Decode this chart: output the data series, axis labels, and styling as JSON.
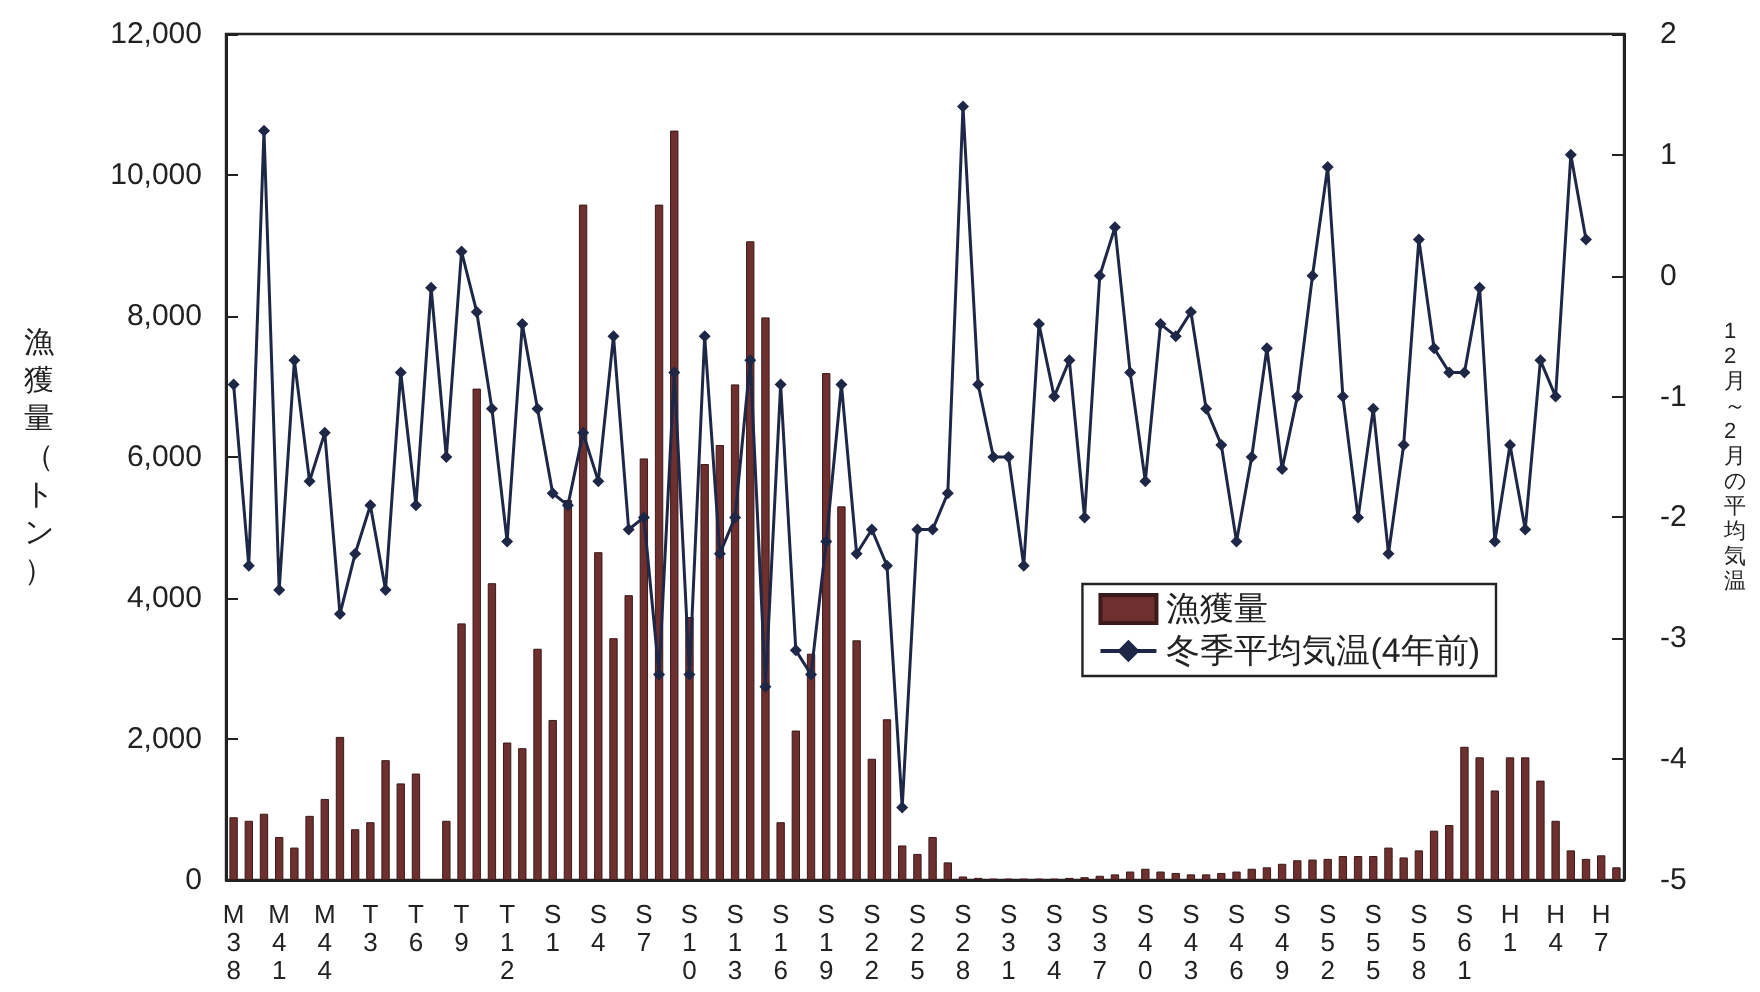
{
  "chart_data": {
    "type": "bar",
    "categories": [
      "M38",
      null,
      null,
      "M41",
      null,
      null,
      "M44",
      null,
      null,
      "T3",
      null,
      null,
      "T6",
      null,
      null,
      "T9",
      null,
      null,
      "T12",
      null,
      null,
      "S1",
      null,
      null,
      "S4",
      null,
      null,
      "S7",
      null,
      null,
      "S10",
      null,
      null,
      "S13",
      null,
      null,
      "S16",
      null,
      null,
      "S19",
      null,
      null,
      "S22",
      null,
      null,
      "S25",
      null,
      null,
      "S28",
      null,
      null,
      "S31",
      null,
      null,
      "S34",
      null,
      null,
      "S37",
      null,
      null,
      "S40",
      null,
      null,
      "S43",
      null,
      null,
      "S46",
      null,
      null,
      "S49",
      null,
      null,
      "S52",
      null,
      null,
      "S55",
      null,
      null,
      "S58",
      null,
      null,
      "S61",
      null,
      null,
      "H1",
      null,
      null,
      "H4",
      null,
      null,
      "H7",
      null
    ],
    "series": [
      {
        "name": "漁獲量",
        "color": "#6e2f2f",
        "values": [
          890,
          840,
          940,
          610,
          460,
          910,
          1150,
          2030,
          720,
          820,
          1700,
          1370,
          1510,
          null,
          840,
          3640,
          6970,
          4210,
          1950,
          1870,
          3280,
          2270,
          5390,
          9580,
          4650,
          3430,
          4040,
          5980,
          9580,
          10630,
          3730,
          5900,
          6170,
          7030,
          9060,
          7980,
          820,
          2120,
          3210,
          7190,
          5300,
          3400,
          1720,
          2280,
          490,
          370,
          610,
          250,
          50,
          30,
          20,
          20,
          20,
          20,
          20,
          30,
          40,
          60,
          80,
          120,
          160,
          120,
          100,
          80,
          80,
          100,
          120,
          160,
          180,
          230,
          280,
          290,
          300,
          340,
          340,
          340,
          460,
          320,
          420,
          700,
          780,
          1890,
          1740,
          1270,
          1740,
          1740,
          1410,
          840,
          420,
          300,
          350,
          180
        ]
      },
      {
        "name": "冬季平均気温(4年前)",
        "type": "line",
        "axis": "y2",
        "color": "#1f2747",
        "marker": "diamond",
        "values": [
          -0.9,
          -2.4,
          1.2,
          -2.6,
          -0.7,
          -1.7,
          -1.3,
          -2.8,
          -2.3,
          -1.9,
          -2.6,
          -0.8,
          -1.9,
          -0.1,
          -1.5,
          0.2,
          -0.3,
          -1.1,
          -2.2,
          -0.4,
          -1.1,
          -1.8,
          -1.9,
          -1.3,
          -1.7,
          -0.5,
          -2.1,
          -2.0,
          -3.3,
          -0.8,
          -3.3,
          -0.5,
          -2.3,
          -2.0,
          -0.7,
          -3.4,
          -0.9,
          -3.1,
          -3.3,
          -2.2,
          -0.9,
          -2.3,
          -2.1,
          -2.4,
          -4.4,
          -2.1,
          -2.1,
          -1.8,
          1.4,
          -0.9,
          -1.5,
          -1.5,
          -2.4,
          -0.4,
          -1.0,
          -0.7,
          -2.0,
          0.0,
          0.4,
          -0.8,
          -1.7,
          -0.4,
          -0.5,
          -0.3,
          -1.1,
          -1.4,
          -2.2,
          -1.5,
          -0.6,
          -1.6,
          -1.0,
          0.0,
          0.9,
          -1.0,
          -2.0,
          -1.1,
          -2.3,
          -1.4,
          0.3,
          -0.6,
          -0.8,
          -0.8,
          -0.1,
          -2.2,
          -1.4,
          -2.1,
          -0.7,
          -1.0,
          1.0,
          0.3,
          null,
          null
        ]
      }
    ],
    "ylabel": "漁獲量（トン）",
    "y2label": "12月～2月の平均気温",
    "ylim": [
      0,
      12000
    ],
    "yticks": [
      {
        "value": 0,
        "label": "0"
      },
      {
        "value": 2000,
        "label": "2,000"
      },
      {
        "value": 4000,
        "label": "4,000"
      },
      {
        "value": 6000,
        "label": "6,000"
      },
      {
        "value": 8000,
        "label": "8,000"
      },
      {
        "value": 10000,
        "label": "10,000"
      },
      {
        "value": 12000,
        "label": "12,000"
      }
    ],
    "y2lim": [
      -5,
      2
    ],
    "y2ticks": [
      -5,
      -4,
      -3,
      -2,
      -1,
      0,
      1,
      2
    ],
    "grid": false,
    "legend": "right"
  }
}
